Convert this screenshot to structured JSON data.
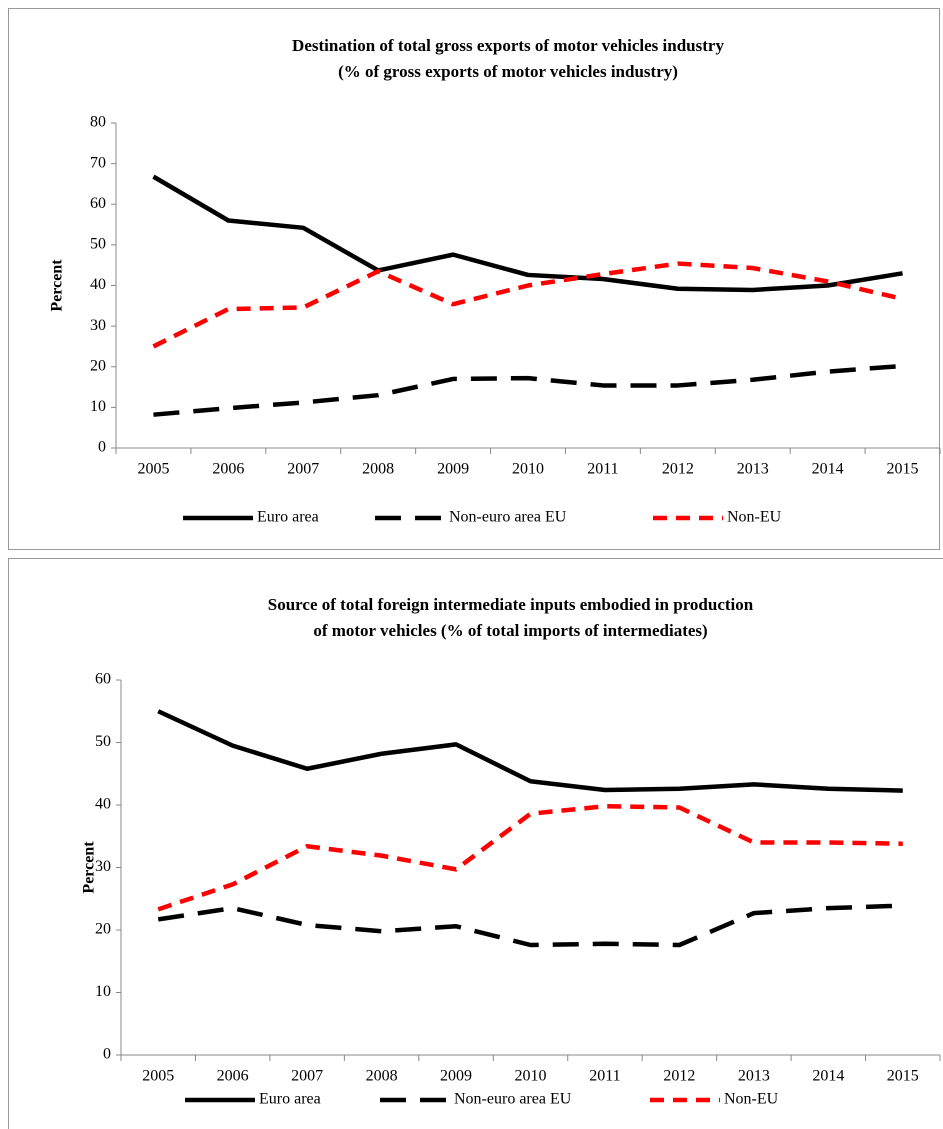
{
  "chart_data": [
    {
      "type": "line",
      "title": [
        "Destination of total gross exports of motor vehicles industry",
        "(% of gross exports of motor vehicles industry)"
      ],
      "y_label": "Percent",
      "categories": [
        "2005",
        "2006",
        "2007",
        "2008",
        "2009",
        "2010",
        "2011",
        "2012",
        "2013",
        "2014",
        "2015"
      ],
      "ylim": [
        0,
        80
      ],
      "yticks": [
        0,
        10,
        20,
        30,
        40,
        50,
        60,
        70,
        80
      ],
      "legend": "bottom",
      "series": [
        {
          "name": "Euro area",
          "color": "#000000",
          "style": "solid",
          "values": [
            66.8,
            56,
            54.2,
            43.7,
            47.6,
            42.6,
            41.6,
            39.2,
            38.9,
            40,
            43
          ]
        },
        {
          "name": "Non-euro area EU",
          "color": "#000000",
          "style": "longdash",
          "values": [
            8.2,
            9.8,
            11.2,
            13,
            17,
            17.2,
            15.4,
            15.4,
            16.8,
            18.8,
            20.2
          ]
        },
        {
          "name": "Non-EU",
          "color": "#ff0000",
          "style": "dashed",
          "values": [
            25,
            34.2,
            34.6,
            43.5,
            35.4,
            40,
            42.8,
            45.4,
            44.3,
            41,
            36.7
          ]
        }
      ]
    },
    {
      "type": "line",
      "title": [
        "Source of total foreign intermediate inputs embodied in production",
        "of motor vehicles (% of total imports of intermediates)"
      ],
      "y_label": "Percent",
      "categories": [
        "2005",
        "2006",
        "2007",
        "2008",
        "2009",
        "2010",
        "2011",
        "2012",
        "2013",
        "2014",
        "2015"
      ],
      "ylim": [
        0,
        60
      ],
      "yticks": [
        0,
        10,
        20,
        30,
        40,
        50,
        60
      ],
      "legend": "bottom",
      "series": [
        {
          "name": "Euro area",
          "color": "#000000",
          "style": "solid",
          "values": [
            55,
            49.5,
            45.8,
            48.2,
            49.7,
            43.8,
            42.4,
            42.6,
            43.3,
            42.6,
            42.3
          ]
        },
        {
          "name": "Non-euro area EU",
          "color": "#000000",
          "style": "longdash",
          "values": [
            21.7,
            23.5,
            20.8,
            19.8,
            20.6,
            17.6,
            17.8,
            17.6,
            22.7,
            23.5,
            23.9
          ]
        },
        {
          "name": "Non-EU",
          "color": "#ff0000",
          "style": "dashed",
          "values": [
            23.3,
            27.3,
            33.4,
            31.9,
            29.7,
            38.6,
            39.8,
            39.6,
            34,
            34,
            33.8
          ]
        }
      ]
    }
  ]
}
